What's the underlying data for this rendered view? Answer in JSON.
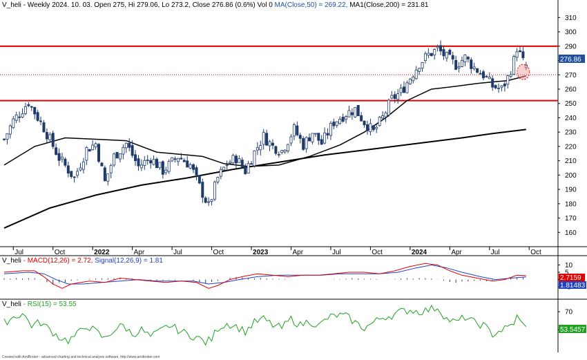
{
  "header": {
    "price_ticker": "V_heli",
    "price_info": " - Weekly 2024. 10. 03. Open 275, Hi 279.06, Lo 273.2, Close 276.86 (0.6%) Vol 0 ",
    "ma50_label": "MA(Close,50) = 269.22, ",
    "ma200_label": "MA1(Close,200) = 231.81",
    "macd_ticker": "V_heli",
    "macd_label": " - MACD(12,26) = 2.72, ",
    "signal_label": "Signal(12,26,9) = 1.81",
    "rsi_ticker": "V_heli",
    "rsi_label": " - RSI(15) = 53.55"
  },
  "badges": {
    "close": "276.86",
    "macd": "2.7159",
    "signal": "1.81483",
    "rsi": "53.5457"
  },
  "footer": "Created with AmiBroker - advanced charting and technical analysis software. http://www.amibroker.com",
  "colors": {
    "up": "#ffffff",
    "down": "#1f3b6b",
    "hline": "#e00000",
    "ma": "#000000",
    "macd": "#e00000",
    "signal": "#2040c0",
    "rsi": "#20a020",
    "badge_close": "#1f4f9f",
    "badge_macd": "#e00000",
    "badge_signal": "#2040c0",
    "badge_rsi": "#20a020"
  },
  "chart_data": {
    "type": "candlestick",
    "price_axis": {
      "min": 150,
      "max": 315,
      "ticks": [
        160,
        170,
        180,
        190,
        200,
        210,
        220,
        230,
        240,
        250,
        260,
        270,
        280,
        290,
        300,
        310
      ]
    },
    "x_labels": [
      {
        "label": "Jul",
        "week": 3,
        "bold": false
      },
      {
        "label": "Oct",
        "week": 16,
        "bold": false
      },
      {
        "label": "2022",
        "week": 29,
        "bold": true
      },
      {
        "label": "Apr",
        "week": 42,
        "bold": false
      },
      {
        "label": "Jul",
        "week": 55,
        "bold": false
      },
      {
        "label": "Oct",
        "week": 68,
        "bold": false
      },
      {
        "label": "2023",
        "week": 81,
        "bold": true
      },
      {
        "label": "Apr",
        "week": 94,
        "bold": false
      },
      {
        "label": "Jul",
        "week": 107,
        "bold": false
      },
      {
        "label": "Oct",
        "week": 120,
        "bold": false
      },
      {
        "label": "2024",
        "week": 133,
        "bold": true
      },
      {
        "label": "Apr",
        "week": 146,
        "bold": false
      },
      {
        "label": "Jul",
        "week": 159,
        "bold": false
      },
      {
        "label": "Oct",
        "week": 172,
        "bold": false
      }
    ],
    "horizontal_lines": [
      {
        "value": 290,
        "style": "solid"
      },
      {
        "value": 252,
        "style": "solid"
      },
      {
        "value": 270,
        "style": "dotted"
      }
    ],
    "anchors": [
      [
        0,
        225
      ],
      [
        3,
        238
      ],
      [
        8,
        251
      ],
      [
        13,
        233
      ],
      [
        18,
        212
      ],
      [
        23,
        198
      ],
      [
        27,
        218
      ],
      [
        30,
        222
      ],
      [
        33,
        195
      ],
      [
        36,
        213
      ],
      [
        40,
        222
      ],
      [
        44,
        206
      ],
      [
        48,
        212
      ],
      [
        52,
        203
      ],
      [
        57,
        213
      ],
      [
        61,
        207
      ],
      [
        64,
        192
      ],
      [
        67,
        178
      ],
      [
        70,
        198
      ],
      [
        73,
        208
      ],
      [
        76,
        212
      ],
      [
        79,
        203
      ],
      [
        82,
        216
      ],
      [
        85,
        227
      ],
      [
        88,
        220
      ],
      [
        91,
        217
      ],
      [
        95,
        232
      ],
      [
        98,
        221
      ],
      [
        101,
        230
      ],
      [
        104,
        222
      ],
      [
        108,
        237
      ],
      [
        112,
        243
      ],
      [
        115,
        246
      ],
      [
        118,
        237
      ],
      [
        121,
        230
      ],
      [
        124,
        240
      ],
      [
        127,
        253
      ],
      [
        130,
        258
      ],
      [
        133,
        268
      ],
      [
        136,
        278
      ],
      [
        139,
        284
      ],
      [
        142,
        288
      ],
      [
        145,
        282
      ],
      [
        148,
        277
      ],
      [
        151,
        282
      ],
      [
        154,
        275
      ],
      [
        157,
        270
      ],
      [
        160,
        262
      ],
      [
        163,
        260
      ],
      [
        165,
        268
      ],
      [
        167,
        280
      ],
      [
        168,
        289
      ],
      [
        169,
        284
      ],
      [
        170,
        279
      ],
      [
        171,
        276.86
      ]
    ],
    "ma50_points": [
      [
        0,
        207
      ],
      [
        10,
        220
      ],
      [
        20,
        226
      ],
      [
        30,
        225
      ],
      [
        40,
        224
      ],
      [
        50,
        216
      ],
      [
        60,
        214
      ],
      [
        65,
        213
      ],
      [
        72,
        208
      ],
      [
        80,
        206
      ],
      [
        90,
        207
      ],
      [
        100,
        213
      ],
      [
        110,
        221
      ],
      [
        118,
        230
      ],
      [
        125,
        240
      ],
      [
        132,
        252
      ],
      [
        140,
        260
      ],
      [
        148,
        262
      ],
      [
        155,
        264
      ],
      [
        160,
        265
      ],
      [
        165,
        266
      ],
      [
        171,
        269.22
      ]
    ],
    "ma200_points": [
      [
        0,
        163
      ],
      [
        15,
        177
      ],
      [
        30,
        186
      ],
      [
        45,
        193
      ],
      [
        60,
        198
      ],
      [
        75,
        204
      ],
      [
        90,
        209
      ],
      [
        105,
        214
      ],
      [
        120,
        218
      ],
      [
        135,
        222
      ],
      [
        150,
        226
      ],
      [
        160,
        229
      ],
      [
        171,
        231.81
      ]
    ],
    "macd": {
      "axis": {
        "min": -12,
        "max": 14,
        "ticks": [
          10,
          5,
          0,
          -5
        ]
      },
      "macd_points": [
        [
          0,
          5
        ],
        [
          6,
          6
        ],
        [
          10,
          6
        ],
        [
          13,
          2
        ],
        [
          16,
          -3
        ],
        [
          19,
          -6
        ],
        [
          22,
          -3
        ],
        [
          28,
          -1
        ],
        [
          33,
          -2
        ],
        [
          38,
          1
        ],
        [
          43,
          0
        ],
        [
          48,
          -1
        ],
        [
          53,
          -2
        ],
        [
          58,
          -1
        ],
        [
          63,
          -2
        ],
        [
          67,
          -6
        ],
        [
          70,
          -4
        ],
        [
          74,
          0
        ],
        [
          78,
          2
        ],
        [
          83,
          4
        ],
        [
          88,
          3
        ],
        [
          93,
          2
        ],
        [
          98,
          3
        ],
        [
          103,
          3
        ],
        [
          108,
          4
        ],
        [
          113,
          5
        ],
        [
          118,
          5
        ],
        [
          123,
          4
        ],
        [
          128,
          6
        ],
        [
          133,
          9
        ],
        [
          138,
          11
        ],
        [
          142,
          10
        ],
        [
          146,
          6
        ],
        [
          150,
          3
        ],
        [
          155,
          1
        ],
        [
          160,
          -1
        ],
        [
          164,
          0
        ],
        [
          168,
          3
        ],
        [
          171,
          2.72
        ]
      ],
      "signal_points": [
        [
          0,
          4
        ],
        [
          8,
          5
        ],
        [
          13,
          4
        ],
        [
          17,
          0
        ],
        [
          21,
          -3
        ],
        [
          26,
          -3
        ],
        [
          32,
          -2
        ],
        [
          38,
          -1
        ],
        [
          44,
          0
        ],
        [
          50,
          -1
        ],
        [
          56,
          -1
        ],
        [
          62,
          -1
        ],
        [
          67,
          -3
        ],
        [
          72,
          -2
        ],
        [
          77,
          0
        ],
        [
          83,
          2
        ],
        [
          90,
          3
        ],
        [
          97,
          3
        ],
        [
          104,
          3
        ],
        [
          110,
          4
        ],
        [
          117,
          4
        ],
        [
          123,
          4
        ],
        [
          129,
          5
        ],
        [
          135,
          8
        ],
        [
          140,
          10
        ],
        [
          145,
          8
        ],
        [
          150,
          5
        ],
        [
          156,
          2
        ],
        [
          161,
          0
        ],
        [
          166,
          1
        ],
        [
          171,
          1.81
        ]
      ],
      "hist_points": [
        [
          0,
          1
        ],
        [
          10,
          1
        ],
        [
          16,
          -3
        ],
        [
          22,
          -1
        ],
        [
          30,
          1
        ],
        [
          40,
          1
        ],
        [
          50,
          -1
        ],
        [
          60,
          0
        ],
        [
          67,
          -3
        ],
        [
          75,
          2
        ],
        [
          85,
          1
        ],
        [
          95,
          0
        ],
        [
          105,
          0
        ],
        [
          115,
          1
        ],
        [
          125,
          0
        ],
        [
          133,
          1
        ],
        [
          140,
          1
        ],
        [
          147,
          -2
        ],
        [
          155,
          -1
        ],
        [
          160,
          -1
        ],
        [
          166,
          2
        ],
        [
          171,
          1
        ]
      ]
    },
    "rsi": {
      "axis": {
        "min": 25,
        "max": 80,
        "ticks": [
          70,
          50
        ]
      },
      "points": [
        [
          0,
          58
        ],
        [
          3,
          64
        ],
        [
          6,
          68
        ],
        [
          9,
          55
        ],
        [
          12,
          58
        ],
        [
          15,
          50
        ],
        [
          18,
          42
        ],
        [
          21,
          38
        ],
        [
          24,
          45
        ],
        [
          27,
          55
        ],
        [
          30,
          48
        ],
        [
          33,
          40
        ],
        [
          36,
          50
        ],
        [
          39,
          55
        ],
        [
          42,
          45
        ],
        [
          45,
          50
        ],
        [
          48,
          42
        ],
        [
          51,
          48
        ],
        [
          54,
          55
        ],
        [
          57,
          50
        ],
        [
          60,
          45
        ],
        [
          63,
          42
        ],
        [
          66,
          36
        ],
        [
          68,
          40
        ],
        [
          70,
          52
        ],
        [
          73,
          57
        ],
        [
          76,
          54
        ],
        [
          79,
          48
        ],
        [
          82,
          58
        ],
        [
          85,
          62
        ],
        [
          88,
          55
        ],
        [
          91,
          52
        ],
        [
          94,
          62
        ],
        [
          97,
          55
        ],
        [
          100,
          60
        ],
        [
          103,
          54
        ],
        [
          106,
          63
        ],
        [
          109,
          66
        ],
        [
          112,
          65
        ],
        [
          115,
          58
        ],
        [
          118,
          52
        ],
        [
          121,
          58
        ],
        [
          124,
          64
        ],
        [
          127,
          66
        ],
        [
          130,
          70
        ],
        [
          133,
          72
        ],
        [
          136,
          70
        ],
        [
          139,
          72
        ],
        [
          142,
          75
        ],
        [
          145,
          62
        ],
        [
          148,
          58
        ],
        [
          151,
          64
        ],
        [
          154,
          58
        ],
        [
          157,
          55
        ],
        [
          160,
          45
        ],
        [
          163,
          50
        ],
        [
          165,
          52
        ],
        [
          167,
          58
        ],
        [
          168,
          64
        ],
        [
          170,
          55
        ],
        [
          171,
          53.55
        ]
      ]
    }
  }
}
